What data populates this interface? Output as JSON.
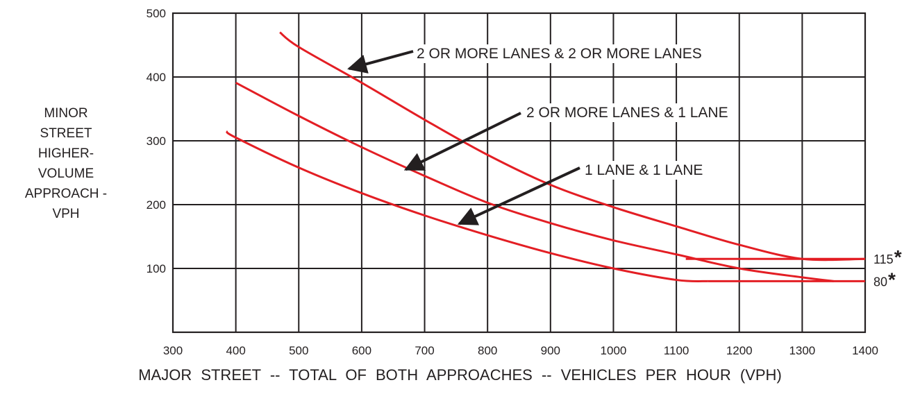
{
  "chart_data": {
    "type": "line",
    "ylabel_lines": [
      "MINOR",
      "STREET",
      "HIGHER-",
      "VOLUME",
      "APPROACH -",
      "VPH"
    ],
    "xlabel": "MAJOR  STREET -- TOTAL  OF  BOTH  APPROACHES -- VEHICLES  PER  HOUR  (VPH)",
    "xlim": [
      300,
      1400
    ],
    "ylim": [
      0,
      500
    ],
    "x_ticks": [
      300,
      400,
      500,
      600,
      700,
      800,
      900,
      1000,
      1100,
      1200,
      1300,
      1400
    ],
    "y_ticks": [
      100,
      200,
      300,
      400,
      500
    ],
    "grid": true,
    "line_color": "#e31e24",
    "series": [
      {
        "name": "2 OR MORE LANES & 2 OR MORE LANES",
        "x": [
          470,
          500,
          600,
          700,
          800,
          900,
          1000,
          1100,
          1200,
          1300,
          1400
        ],
        "y": [
          470,
          447,
          391,
          333,
          278,
          231,
          196,
          166,
          137,
          115,
          115
        ]
      },
      {
        "name": "2 OR MORE LANES & 1 LANE",
        "x": [
          400,
          500,
          600,
          700,
          800,
          900,
          1000,
          1100,
          1200,
          1300,
          1350
        ],
        "y": [
          391,
          339,
          290,
          245,
          203,
          171,
          144,
          122,
          100,
          86,
          80
        ]
      },
      {
        "name": "1 LANE & 1 LANE",
        "x": [
          385,
          400,
          500,
          600,
          700,
          800,
          900,
          1000,
          1100,
          1150
        ],
        "y": [
          315,
          305,
          258,
          218,
          183,
          152,
          124,
          100,
          82,
          80
        ]
      }
    ],
    "horizontal_segments": [
      {
        "y": 115,
        "x": [
          1115,
          1400
        ]
      },
      {
        "y": 80,
        "x": [
          1150,
          1400
        ]
      }
    ],
    "annotations": [
      {
        "text": "2 OR MORE LANES & 2 OR MORE LANES",
        "points_to": [
          580,
          413
        ]
      },
      {
        "text": "2 OR MORE LANES & 1 LANE",
        "points_to": [
          670,
          255
        ]
      },
      {
        "text": "1 LANE & 1 LANE",
        "points_to": [
          755,
          170
        ]
      }
    ],
    "end_labels": [
      {
        "value": "115",
        "mark": "*",
        "y": 115
      },
      {
        "value": "80",
        "mark": "*",
        "y": 80
      }
    ]
  }
}
